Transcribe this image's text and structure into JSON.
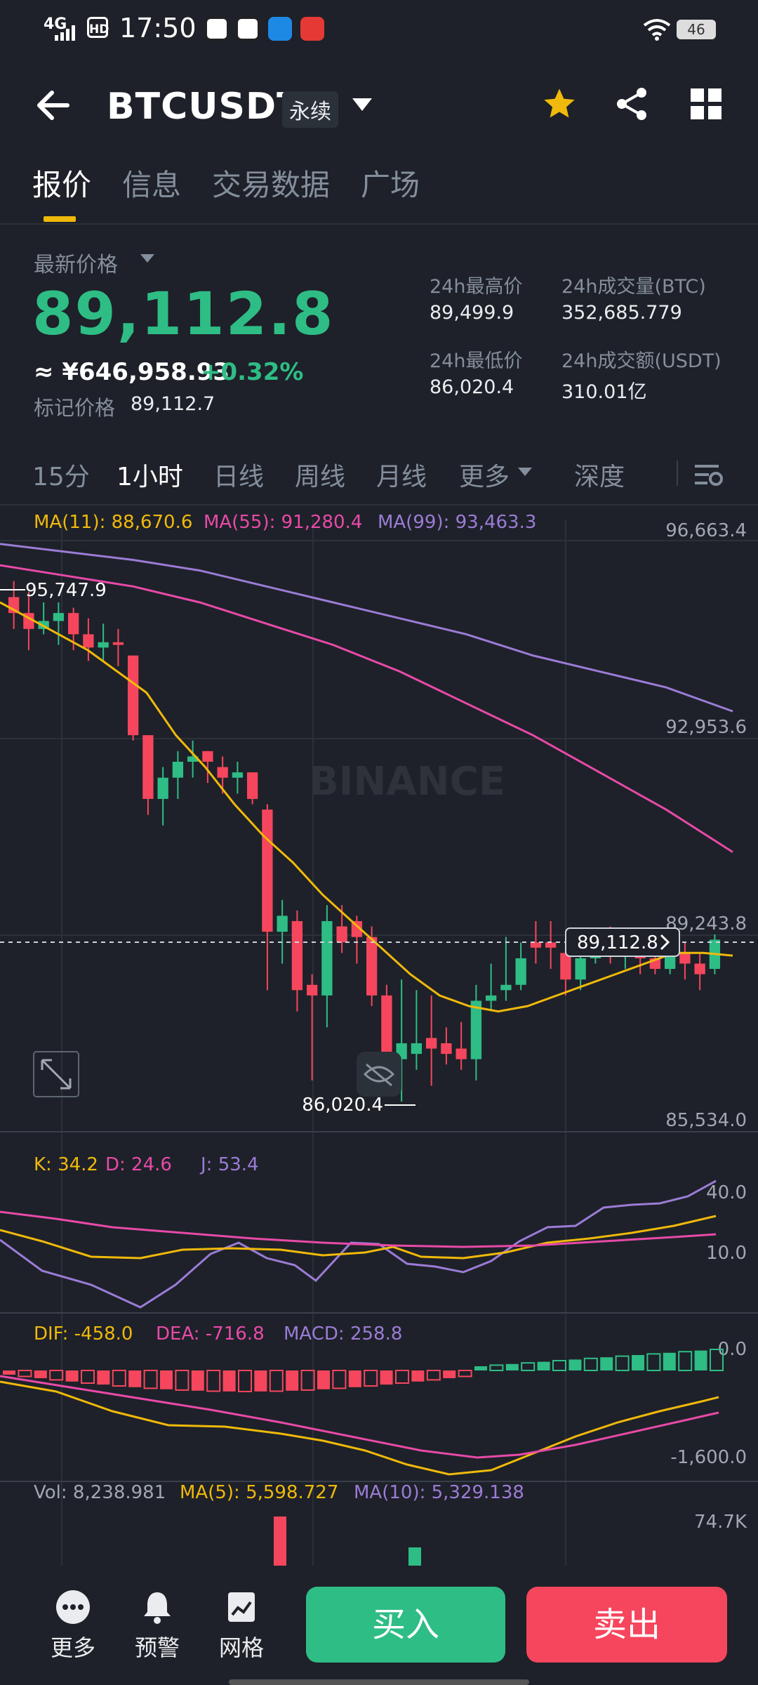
{
  "status_bar": {
    "time": "17:50",
    "network": "4G",
    "hd": "HD",
    "battery": "46"
  },
  "header": {
    "symbol": "BTCUSDT",
    "contract_type": "永续"
  },
  "tabs": [
    "报价",
    "信息",
    "交易数据",
    "广场"
  ],
  "price": {
    "latest_label": "最新价格",
    "last": "89,112.8",
    "cny": "≈ ¥646,958.93",
    "change": "+0.32%",
    "mark_label": "标记价格",
    "mark": "89,112.7"
  },
  "stats": {
    "high_label": "24h最高价",
    "high": "89,499.9",
    "low_label": "24h最低价",
    "low": "86,020.4",
    "vol_btc_label": "24h成交量(BTC)",
    "vol_btc": "352,685.779",
    "vol_usdt_label": "24h成交额(USDT)",
    "vol_usdt": "310.01亿"
  },
  "timeframes": [
    "15分",
    "1小时",
    "日线",
    "周线",
    "月线",
    "更多",
    "深度"
  ],
  "main_chart": {
    "ma11": "MA(11): 88,670.6",
    "ma55": "MA(55): 91,280.4",
    "ma99": "MA(99): 93,463.3",
    "axis_labels": [
      "96,663.4",
      "92,953.6",
      "89,243.8",
      "85,534.0"
    ],
    "max_label": "95,747.9",
    "min_label": "86,020.4",
    "current_label": "89,112.8",
    "watermark": "BINANCE"
  },
  "kdj": {
    "k": "K: 34.2",
    "d": "D: 24.6",
    "j": "J: 53.4",
    "axis_labels": [
      "40.0",
      "10.0"
    ]
  },
  "macd": {
    "dif": "DIF: -458.0",
    "dea": "DEA: -716.8",
    "macd": "MACD: 258.8",
    "axis_labels": [
      "0.0",
      "-1,600.0"
    ]
  },
  "volume": {
    "vol": "Vol: 8,238.981",
    "ma5": "MA(5): 5,598.727",
    "ma10": "MA(10): 5,329.138",
    "axis_label": "74.7K"
  },
  "bottom_bar": {
    "more": "更多",
    "alert": "预警",
    "grid": "网格",
    "buy": "买入",
    "sell": "卖出"
  },
  "colors": {
    "up": "#2ebd85",
    "down": "#f6465d",
    "ma11": "#f0b90b",
    "ma55": "#e84aa8",
    "ma99": "#9b7cd6",
    "accent": "#f0b90b"
  },
  "chart_data": {
    "type": "candlestick",
    "price_axis": {
      "min": 85534.0,
      "max": 96663.4,
      "ticks": [
        96663.4,
        92953.6,
        89243.8,
        85534.0
      ]
    },
    "candles": [
      [
        95600,
        95300,
        95900,
        95000
      ],
      [
        95300,
        95000,
        95700,
        94600
      ],
      [
        95000,
        95150,
        95500,
        94900
      ],
      [
        95150,
        95300,
        95500,
        94700
      ],
      [
        95300,
        94900,
        95400,
        94600
      ],
      [
        94900,
        94650,
        95200,
        94400
      ],
      [
        94650,
        94750,
        95100,
        94400
      ],
      [
        94750,
        94700,
        95000,
        94300
      ],
      [
        94500,
        93000,
        94500,
        92900
      ],
      [
        93000,
        91800,
        93000,
        91500
      ],
      [
        91800,
        92200,
        92400,
        91300
      ],
      [
        92200,
        92500,
        92700,
        91800
      ],
      [
        92500,
        92600,
        92900,
        92200
      ],
      [
        92700,
        92500,
        92700,
        92100
      ],
      [
        92400,
        92200,
        92600,
        91900
      ],
      [
        92200,
        92300,
        92500,
        91900
      ],
      [
        92300,
        91800,
        92300,
        91700
      ],
      [
        91600,
        89300,
        91700,
        88200
      ],
      [
        89300,
        89600,
        89900,
        88700
      ],
      [
        89500,
        88200,
        89700,
        87800
      ],
      [
        88300,
        88100,
        88500,
        86500
      ],
      [
        88100,
        89500,
        89800,
        87500
      ],
      [
        89400,
        89100,
        89800,
        88900
      ],
      [
        89500,
        89200,
        89600,
        88700
      ],
      [
        89200,
        88100,
        89400,
        87900
      ],
      [
        88100,
        86900,
        88300,
        86900
      ],
      [
        86900,
        87200,
        88400,
        86100
      ],
      [
        87000,
        87200,
        88200,
        86700
      ],
      [
        87300,
        87100,
        88100,
        86400
      ],
      [
        87200,
        87000,
        87500,
        86800
      ],
      [
        87100,
        86900,
        87600,
        86700
      ],
      [
        86900,
        88000,
        88300,
        86500
      ],
      [
        88000,
        88100,
        88700,
        87800
      ],
      [
        88200,
        88300,
        89200,
        88000
      ],
      [
        88300,
        88800,
        89100,
        88200
      ],
      [
        89100,
        89000,
        89500,
        88700
      ],
      [
        89100,
        89000,
        89500,
        88600
      ],
      [
        88900,
        88400,
        89000,
        88100
      ],
      [
        88400,
        88800,
        89000,
        88200
      ],
      [
        88800,
        89200,
        89300,
        88700
      ],
      [
        89200,
        89000,
        89400,
        88700
      ],
      [
        89000,
        89100,
        89300,
        88600
      ],
      [
        89100,
        88800,
        89200,
        88500
      ],
      [
        88800,
        88600,
        89100,
        88500
      ],
      [
        88600,
        88900,
        89300,
        88500
      ],
      [
        88900,
        88700,
        89100,
        88400
      ],
      [
        88700,
        88500,
        88900,
        88200
      ],
      [
        88600,
        89150,
        89250,
        88500
      ]
    ],
    "ma11": [
      95500,
      95200,
      94900,
      94600,
      94200,
      93800,
      93000,
      92400,
      91700,
      91100,
      90600,
      90000,
      89500,
      89000,
      88500,
      88100,
      87900,
      87800,
      87900,
      88100,
      88300,
      88500,
      88700,
      88900,
      88900,
      88850
    ],
    "ma55": [
      96200,
      96000,
      95800,
      95500,
      95100,
      94700,
      94200,
      93600,
      93000,
      92300,
      91600,
      90800
    ],
    "ma99": [
      96600,
      96450,
      96300,
      96100,
      95800,
      95500,
      95200,
      94900,
      94500,
      94200,
      93900,
      93450
    ]
  }
}
